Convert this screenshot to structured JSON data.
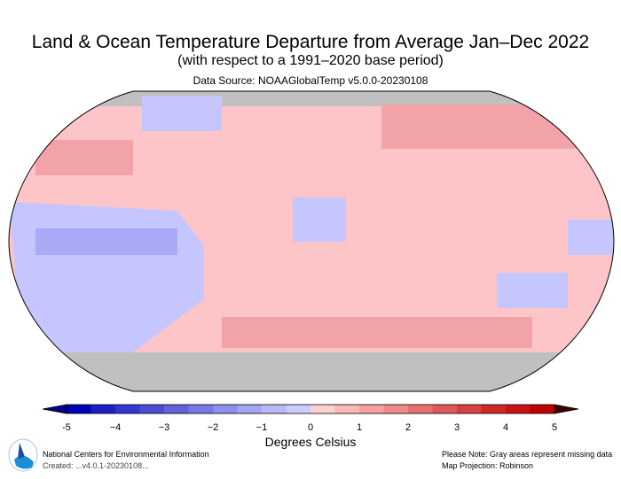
{
  "title": "Land & Ocean Temperature Departure from Average Jan–Dec 2022",
  "subtitle": "(with respect to a 1991–2020 base period)",
  "data_source": "Data Source: NOAAGlobalTemp v5.0.0-20230108",
  "map": {
    "projection": "Robinson",
    "missing_color": "#c0c0c0",
    "dominant_anomaly_color": "#fdc5c8",
    "cool_anomaly_color": "#c6c6ff"
  },
  "colorbar": {
    "label": "Degrees Celsius",
    "ticks": [
      "-5",
      "−4",
      "−3",
      "−2",
      "−1",
      "0",
      "1",
      "2",
      "3",
      "4",
      "5"
    ],
    "min": -5,
    "max": 5,
    "step": 0.5,
    "colors": [
      "#0000b4",
      "#1f1fc4",
      "#3535cf",
      "#4b4bd6",
      "#6262dd",
      "#7878e4",
      "#8e8eeb",
      "#a4a4f1",
      "#b8b8f8",
      "#ccccff",
      "#ffd0d0",
      "#fbb8b8",
      "#f5a0a0",
      "#ef8888",
      "#e87070",
      "#e05858",
      "#d84040",
      "#d02828",
      "#c81414",
      "#c00000"
    ],
    "under_color": "#000080",
    "over_color": "#400000"
  },
  "footer": {
    "org": "National Centers for Environmental Information",
    "created": "Created: ...v4.0.1-20230108...",
    "note": "Please Note: Gray areas represent missing data",
    "projection": "Map Projection: Robinson"
  }
}
